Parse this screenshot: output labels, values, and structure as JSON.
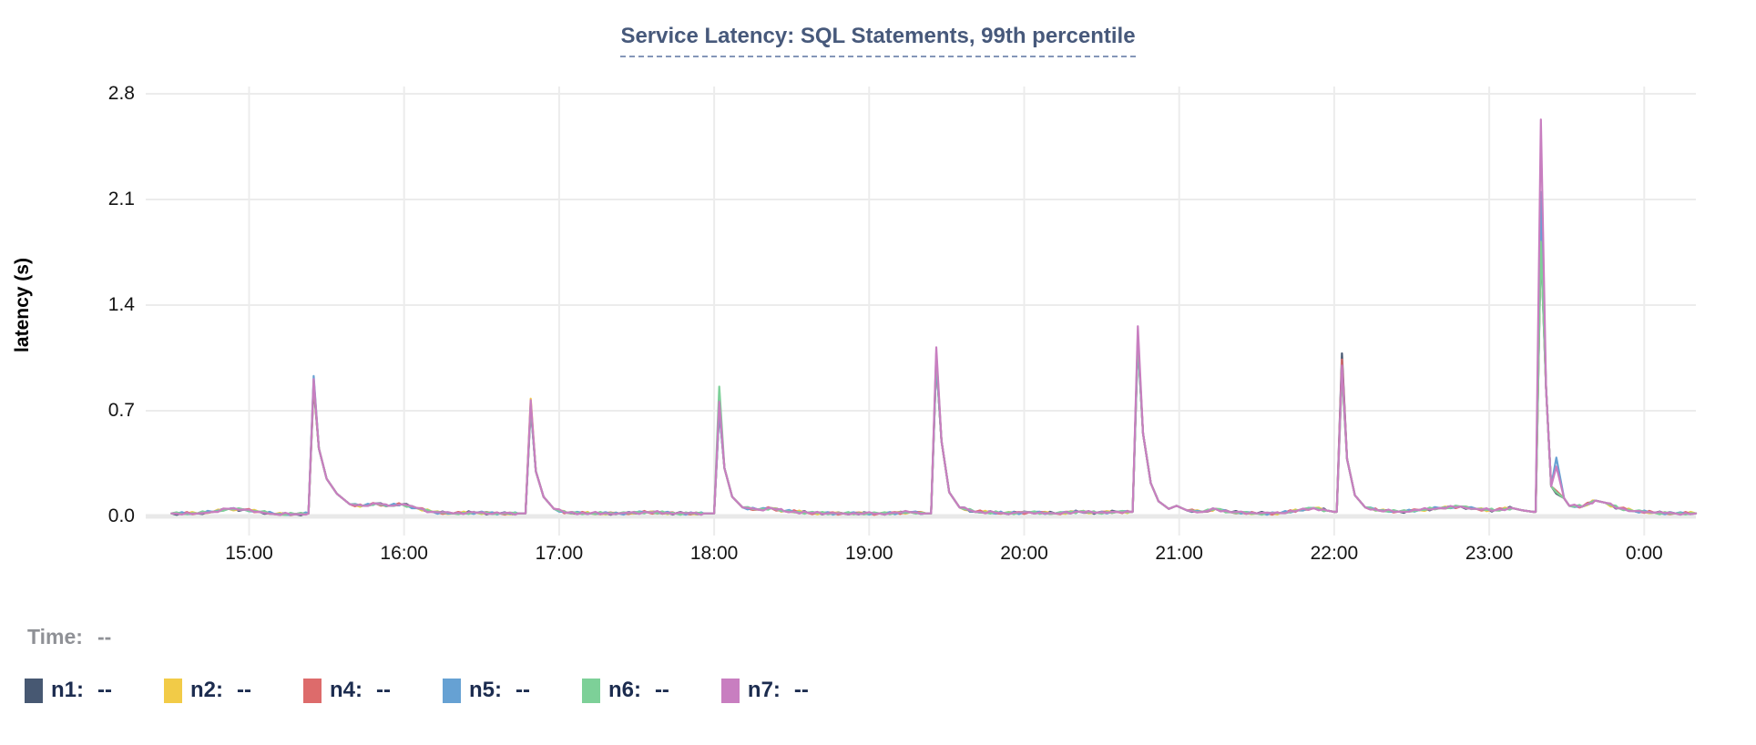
{
  "legend": {
    "time_label": "Time:",
    "time_value": "--",
    "items": [
      {
        "name": "n1",
        "label": "n1:",
        "value": "--",
        "color": "#475872"
      },
      {
        "name": "n2",
        "label": "n2:",
        "value": "--",
        "color": "#f2cb47"
      },
      {
        "name": "n4",
        "label": "n4:",
        "value": "--",
        "color": "#dd6b6b"
      },
      {
        "name": "n5",
        "label": "n5:",
        "value": "--",
        "color": "#66a1d3"
      },
      {
        "name": "n6",
        "label": "n6:",
        "value": "--",
        "color": "#7dd098"
      },
      {
        "name": "n7",
        "label": "n7:",
        "value": "--",
        "color": "#c87ec0"
      }
    ]
  },
  "chart_data": {
    "type": "line",
    "title": "Service Latency: SQL Statements, 99th percentile",
    "ylabel": "latency (s)",
    "ylim": [
      0,
      2.8
    ],
    "grid": true,
    "legend_position": "bottom",
    "x_axis_note": "time of day, minutes counted from 14:00, data spans ~14:30 to ~00:20",
    "yticks": [
      {
        "label": "2.8",
        "value": 2.8
      },
      {
        "label": "2.1",
        "value": 2.1
      },
      {
        "label": "1.4",
        "value": 1.4
      },
      {
        "label": "0.7",
        "value": 0.7
      },
      {
        "label": "0.0",
        "value": 0.0
      }
    ],
    "xticks": [
      {
        "label": "15:00",
        "t": 60
      },
      {
        "label": "16:00",
        "t": 120
      },
      {
        "label": "17:00",
        "t": 180
      },
      {
        "label": "18:00",
        "t": 240
      },
      {
        "label": "19:00",
        "t": 300
      },
      {
        "label": "20:00",
        "t": 360
      },
      {
        "label": "21:00",
        "t": 420
      },
      {
        "label": "22:00",
        "t": 480
      },
      {
        "label": "23:00",
        "t": 540
      },
      {
        "label": "0:00",
        "t": 600
      }
    ],
    "spike_times_minutes": [
      85,
      169,
      242,
      326,
      404,
      483,
      560
    ],
    "base_points": [
      [
        30,
        0.02
      ],
      [
        40,
        0.02
      ],
      [
        46,
        0.03
      ],
      [
        52,
        0.05
      ],
      [
        58,
        0.045
      ],
      [
        64,
        0.03
      ],
      [
        70,
        0.015
      ],
      [
        78,
        0.015
      ],
      [
        83,
        0.02
      ],
      [
        85,
        0.9
      ],
      [
        87,
        0.45
      ],
      [
        90,
        0.25
      ],
      [
        94,
        0.15
      ],
      [
        99,
        0.08
      ],
      [
        104,
        0.07
      ],
      [
        109,
        0.085
      ],
      [
        114,
        0.07
      ],
      [
        119,
        0.08
      ],
      [
        125,
        0.055
      ],
      [
        131,
        0.03
      ],
      [
        139,
        0.02
      ],
      [
        148,
        0.025
      ],
      [
        157,
        0.02
      ],
      [
        164,
        0.02
      ],
      [
        167,
        0.02
      ],
      [
        169,
        0.75
      ],
      [
        171,
        0.3
      ],
      [
        174,
        0.13
      ],
      [
        178,
        0.05
      ],
      [
        183,
        0.025
      ],
      [
        192,
        0.02
      ],
      [
        203,
        0.02
      ],
      [
        214,
        0.028
      ],
      [
        225,
        0.02
      ],
      [
        236,
        0.02
      ],
      [
        240,
        0.02
      ],
      [
        242,
        0.73
      ],
      [
        244,
        0.32
      ],
      [
        247,
        0.13
      ],
      [
        251,
        0.06
      ],
      [
        257,
        0.045
      ],
      [
        262,
        0.055
      ],
      [
        267,
        0.035
      ],
      [
        276,
        0.025
      ],
      [
        290,
        0.02
      ],
      [
        304,
        0.02
      ],
      [
        316,
        0.028
      ],
      [
        322,
        0.02
      ],
      [
        324,
        0.02
      ],
      [
        326,
        1.05
      ],
      [
        328,
        0.5
      ],
      [
        331,
        0.16
      ],
      [
        335,
        0.06
      ],
      [
        341,
        0.03
      ],
      [
        352,
        0.022
      ],
      [
        362,
        0.028
      ],
      [
        372,
        0.02
      ],
      [
        381,
        0.032
      ],
      [
        388,
        0.025
      ],
      [
        396,
        0.03
      ],
      [
        401,
        0.03
      ],
      [
        402,
        0.03
      ],
      [
        404,
        1.18
      ],
      [
        406,
        0.55
      ],
      [
        409,
        0.22
      ],
      [
        412,
        0.1
      ],
      [
        416,
        0.05
      ],
      [
        419,
        0.07
      ],
      [
        423,
        0.04
      ],
      [
        429,
        0.03
      ],
      [
        434,
        0.05
      ],
      [
        440,
        0.028
      ],
      [
        450,
        0.02
      ],
      [
        459,
        0.022
      ],
      [
        466,
        0.04
      ],
      [
        472,
        0.055
      ],
      [
        477,
        0.04
      ],
      [
        480,
        0.03
      ],
      [
        481,
        0.03
      ],
      [
        483,
        1.0
      ],
      [
        485,
        0.38
      ],
      [
        488,
        0.14
      ],
      [
        492,
        0.06
      ],
      [
        497,
        0.04
      ],
      [
        505,
        0.032
      ],
      [
        513,
        0.042
      ],
      [
        521,
        0.055
      ],
      [
        529,
        0.065
      ],
      [
        535,
        0.05
      ],
      [
        542,
        0.04
      ],
      [
        549,
        0.055
      ],
      [
        553,
        0.04
      ],
      [
        557,
        0.03
      ],
      [
        558,
        0.03
      ],
      [
        560,
        1.9
      ],
      [
        562,
        0.85
      ],
      [
        564,
        0.2
      ],
      [
        566,
        0.18
      ],
      [
        569,
        0.12
      ],
      [
        571,
        0.07
      ],
      [
        576,
        0.065
      ],
      [
        581,
        0.105
      ],
      [
        585,
        0.09
      ],
      [
        590,
        0.055
      ],
      [
        596,
        0.035
      ],
      [
        604,
        0.025
      ],
      [
        612,
        0.02
      ],
      [
        620,
        0.02
      ]
    ],
    "series": [
      {
        "name": "n1",
        "color": "#475872",
        "overrides": {
          "85": 0.86,
          "169": 0.72,
          "242": 0.7,
          "326": 1.02,
          "404": 1.15,
          "483": 1.08,
          "560": 1.8,
          "566": 0.15
        }
      },
      {
        "name": "n2",
        "color": "#f2cb47",
        "overrides": {
          "85": 0.89,
          "169": 0.78,
          "242": 0.73,
          "326": 1.05,
          "404": 1.18,
          "483": 0.96,
          "560": 1.85,
          "566": 0.16
        }
      },
      {
        "name": "n4",
        "color": "#dd6b6b",
        "overrides": {
          "85": 0.88,
          "169": 0.74,
          "242": 0.72,
          "326": 1.04,
          "404": 1.17,
          "483": 1.04,
          "560": 1.95,
          "566": 0.17
        }
      },
      {
        "name": "n5",
        "color": "#66a1d3",
        "overrides": {
          "85": 0.93,
          "169": 0.73,
          "242": 0.71,
          "326": 1.03,
          "404": 1.16,
          "483": 0.97,
          "560": 2.15,
          "566": 0.39
        }
      },
      {
        "name": "n6",
        "color": "#7dd098",
        "overrides": {
          "85": 0.9,
          "169": 0.75,
          "242": 0.86,
          "326": 1.08,
          "404": 1.19,
          "483": 0.95,
          "560": 1.82,
          "566": 0.16
        }
      },
      {
        "name": "n7",
        "color": "#c87ec0",
        "overrides": {
          "85": 0.91,
          "169": 0.77,
          "242": 0.76,
          "326": 1.12,
          "404": 1.26,
          "483": 1.0,
          "560": 2.63,
          "566": 0.33
        }
      }
    ]
  }
}
